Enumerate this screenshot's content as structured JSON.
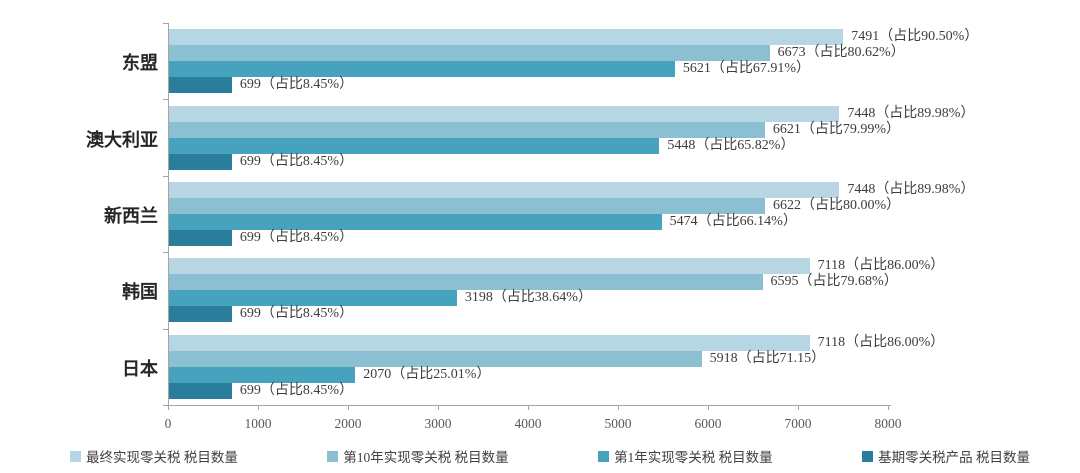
{
  "chart_data": {
    "type": "bar",
    "orientation": "horizontal",
    "title": "",
    "xlabel": "",
    "ylabel": "",
    "xlim": [
      0,
      8000
    ],
    "x_ticks": [
      "0",
      "1000",
      "2000",
      "3000",
      "4000",
      "5000",
      "6000",
      "7000",
      "8000"
    ],
    "x_tick_values": [
      0,
      1000,
      2000,
      3000,
      4000,
      5000,
      6000,
      7000,
      8000
    ],
    "grid": false,
    "legend_position": "bottom",
    "axis_color": "#a6a6a6",
    "text_color": "#404040",
    "categories": [
      "东盟",
      "澳大利亚",
      "新西兰",
      "韩国",
      "日本"
    ],
    "series": [
      {
        "name": "最终实现零关税 税目数量",
        "color": "#b5d6e2",
        "values": [
          7491,
          7448,
          7448,
          7118,
          7118
        ],
        "labels": [
          "7491（占比90.50%）",
          "7448（占比89.98%）",
          "7448（占比89.98%）",
          "7118（占比86.00%）",
          "7118（占比86.00%）"
        ]
      },
      {
        "name": "第10年实现零关税 税目数量",
        "color": "#8bc0d3",
        "values": [
          6673,
          6621,
          6622,
          6595,
          5918
        ],
        "labels": [
          "6673（占比80.62%）",
          "6621（占比79.99%）",
          "6622（占比80.00%）",
          "6595（占比79.68%）",
          "5918（占比71.15）"
        ]
      },
      {
        "name": "第1年实现零关税 税目数量",
        "color": "#47a3bd",
        "values": [
          5621,
          5448,
          5474,
          3198,
          2070
        ],
        "labels": [
          "5621（占比67.91%）",
          "5448（占比65.82%）",
          "5474（占比66.14%）",
          "3198（占比38.64%）",
          "2070（占比25.01%）"
        ]
      },
      {
        "name": "基期零关税产品 税目数量",
        "color": "#2b7e9b",
        "values": [
          699,
          699,
          699,
          699,
          699
        ],
        "labels": [
          "699（占比8.45%）",
          "699（占比8.45%）",
          "699（占比8.45%）",
          "699（占比8.45%）",
          "699（占比8.45%）"
        ]
      }
    ]
  }
}
